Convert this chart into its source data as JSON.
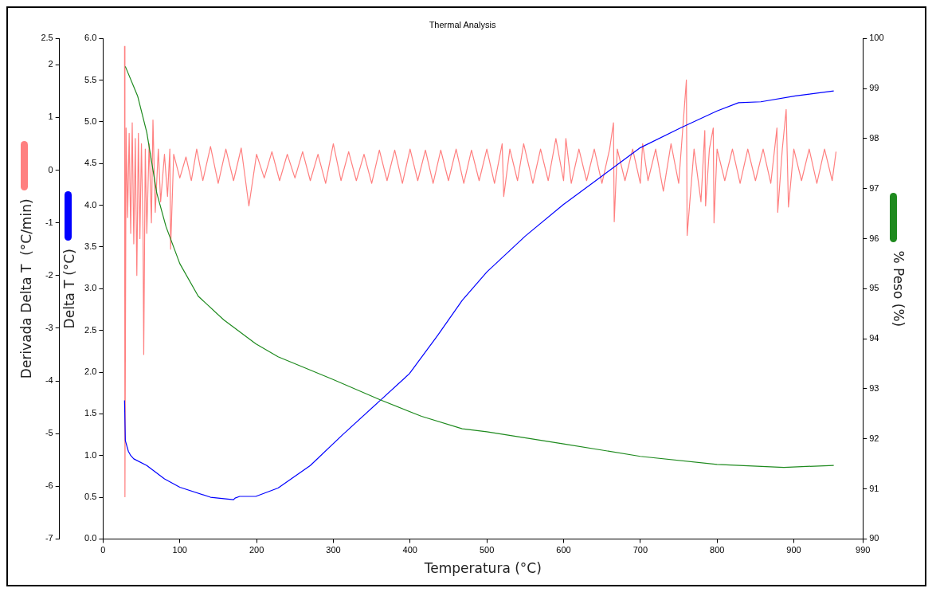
{
  "chart_data": {
    "type": "line",
    "title": "Thermal Analysis",
    "xlabel": "Temperatura (°C)",
    "ylabel": "Delta T (°C)",
    "y2label": "% Peso (%)",
    "y3label": "Derivada Delta T  (°C/min)",
    "xlim": [
      0,
      990
    ],
    "xticks": [
      0,
      100,
      200,
      300,
      400,
      500,
      600,
      700,
      800,
      900,
      990
    ],
    "ylim": [
      0,
      6
    ],
    "yticks": [
      {
        "value": 0,
        "label": "0.0"
      },
      {
        "value": 0.5,
        "label": "0.5"
      },
      {
        "value": 1,
        "label": "1.0"
      },
      {
        "value": 1.5,
        "label": "1.5"
      },
      {
        "value": 2,
        "label": "2.0"
      },
      {
        "value": 2.5,
        "label": "2.5"
      },
      {
        "value": 3,
        "label": "3.0"
      },
      {
        "value": 3.5,
        "label": "3.5"
      },
      {
        "value": 4,
        "label": "4.0"
      },
      {
        "value": 4.5,
        "label": "4.5"
      },
      {
        "value": 5,
        "label": "5.0"
      },
      {
        "value": 5.5,
        "label": "5.5"
      },
      {
        "value": 6,
        "label": "6.0"
      }
    ],
    "y2lim": [
      90,
      100
    ],
    "y2ticks": [
      90,
      91,
      92,
      93,
      94,
      95,
      96,
      97,
      98,
      99,
      100
    ],
    "y3lim": [
      -7,
      2.5
    ],
    "y3ticks": [
      -7,
      -6,
      -5,
      -4,
      -3,
      -2,
      -1,
      0,
      1,
      2,
      2.5
    ],
    "marker": "none",
    "series": [
      {
        "axis": "y3",
        "color": "#ff8080",
        "x": [
          28,
          28.5,
          30,
          32,
          34,
          36,
          38,
          40,
          42,
          44,
          46,
          48,
          50,
          52,
          53,
          55,
          57,
          60,
          63,
          65,
          68,
          72,
          75,
          80,
          84,
          87,
          88,
          92,
          100,
          108,
          115,
          122,
          130,
          140,
          150,
          160,
          170,
          180,
          190,
          200,
          210,
          220,
          230,
          240,
          250,
          260,
          270,
          280,
          290,
          300,
          310,
          320,
          330,
          340,
          350,
          360,
          370,
          380,
          390,
          400,
          410,
          420,
          430,
          440,
          450,
          460,
          470,
          480,
          490,
          500,
          510,
          520,
          522,
          530,
          540,
          548,
          560,
          570,
          580,
          590,
          600,
          603,
          610,
          620,
          630,
          640,
          650,
          660,
          665,
          666,
          670,
          680,
          690,
          700,
          703,
          710,
          720,
          730,
          740,
          750,
          760,
          761,
          770,
          779,
          784,
          785,
          790,
          795,
          796,
          800,
          810,
          820,
          830,
          840,
          850,
          860,
          870,
          878,
          879,
          885,
          890,
          893,
          900,
          910,
          920,
          930,
          940,
          950,
          955
        ],
        "values": [
          2.35,
          -6.2,
          0.8,
          -0.9,
          0.7,
          -1.2,
          0.9,
          -1.4,
          0.6,
          -2.0,
          0.7,
          -1.3,
          0.5,
          -1.1,
          -3.5,
          0.4,
          -1.2,
          0.5,
          -1.0,
          0.95,
          -0.8,
          0.4,
          -0.6,
          0.3,
          -0.5,
          0.4,
          -1.5,
          0.3,
          -0.15,
          0.25,
          -0.2,
          0.4,
          -0.2,
          0.45,
          -0.25,
          0.4,
          -0.2,
          0.42,
          -0.68,
          0.3,
          -0.15,
          0.35,
          -0.2,
          0.3,
          -0.15,
          0.35,
          -0.2,
          0.3,
          -0.25,
          0.5,
          -0.2,
          0.35,
          -0.2,
          0.3,
          -0.25,
          0.38,
          -0.2,
          0.38,
          -0.25,
          0.4,
          -0.2,
          0.38,
          -0.25,
          0.38,
          -0.2,
          0.4,
          -0.25,
          0.38,
          -0.2,
          0.4,
          -0.25,
          0.5,
          -0.5,
          0.4,
          -0.2,
          0.5,
          -0.25,
          0.4,
          -0.2,
          0.6,
          -0.2,
          0.6,
          -0.25,
          0.4,
          -0.2,
          0.4,
          -0.25,
          0.4,
          0.9,
          -0.98,
          0.4,
          -0.2,
          0.4,
          -0.25,
          0.5,
          -0.2,
          0.4,
          -0.4,
          0.5,
          -0.25,
          1.71,
          -1.24,
          0.4,
          -0.6,
          0.75,
          -0.68,
          0.4,
          0.8,
          -1.0,
          0.4,
          -0.2,
          0.4,
          -0.25,
          0.4,
          -0.2,
          0.4,
          -0.25,
          0.8,
          -0.8,
          0.4,
          1.15,
          -0.7,
          0.4,
          -0.2,
          0.4,
          -0.25,
          0.4,
          -0.2,
          0.35
        ]
      },
      {
        "axis": "y",
        "color": "#0000ff",
        "x": [
          28,
          29,
          33,
          36,
          40,
          57,
          80,
          100,
          140,
          170,
          172,
          178,
          199,
          228,
          270,
          311,
          361,
          399,
          436,
          468,
          500,
          550,
          600,
          650,
          700,
          753,
          800,
          828,
          857,
          902,
          952
        ],
        "values": [
          1.66,
          1.18,
          1.05,
          1.0,
          0.96,
          0.88,
          0.72,
          0.62,
          0.5,
          0.47,
          0.49,
          0.51,
          0.51,
          0.61,
          0.88,
          1.24,
          1.66,
          1.98,
          2.44,
          2.86,
          3.2,
          3.63,
          4.01,
          4.35,
          4.69,
          4.93,
          5.13,
          5.23,
          5.24,
          5.31,
          5.37
        ]
      },
      {
        "axis": "y2",
        "color": "#1e8a1e",
        "x": [
          29,
          45,
          57,
          70,
          82,
          100,
          124,
          157,
          199,
          228,
          299,
          361,
          415,
          468,
          500,
          600,
          700,
          800,
          887,
          952
        ],
        "values": [
          99.44,
          98.85,
          98.12,
          96.91,
          96.24,
          95.5,
          94.85,
          94.38,
          93.9,
          93.64,
          93.19,
          92.78,
          92.45,
          92.2,
          92.14,
          91.9,
          91.65,
          91.49,
          91.43,
          91.47
        ]
      }
    ]
  }
}
